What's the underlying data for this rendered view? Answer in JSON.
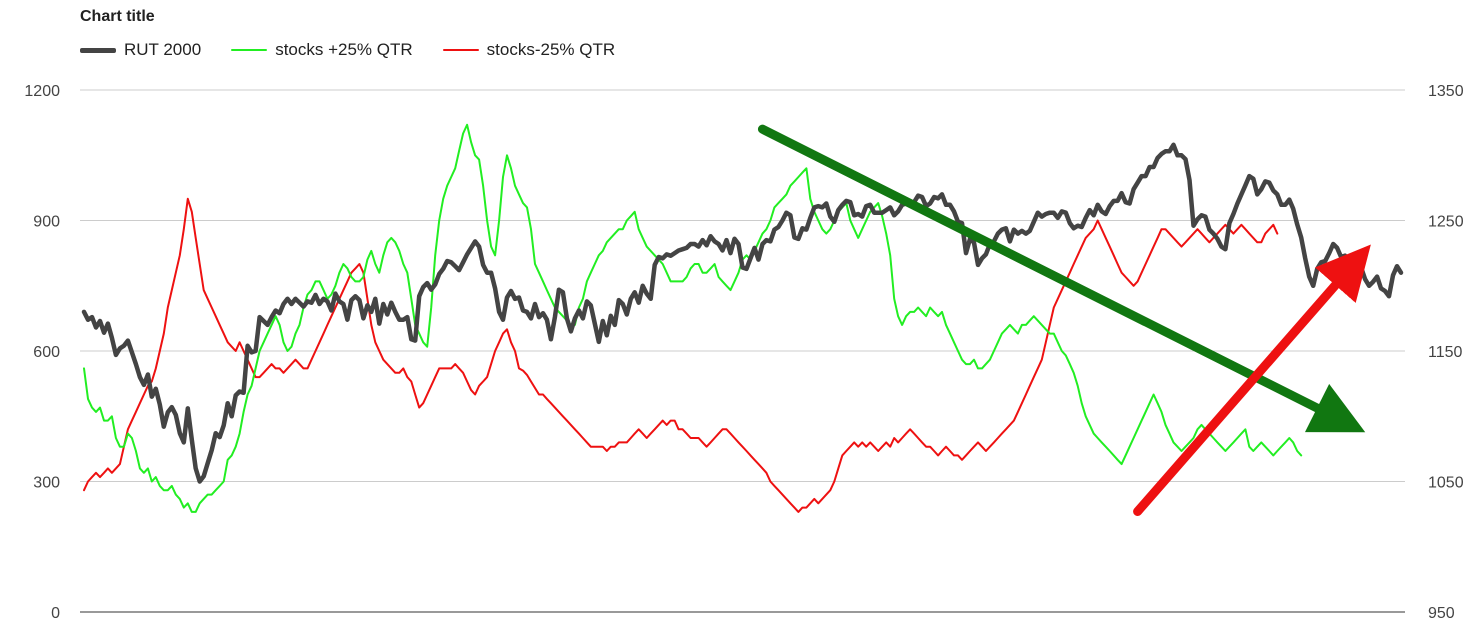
{
  "chart_data": {
    "type": "line",
    "title": "Chart title",
    "legend_position": "top-left",
    "grid": true,
    "y_left": {
      "range": [
        0,
        1200
      ],
      "ticks": [
        0,
        300,
        600,
        900,
        1200
      ]
    },
    "y_right": {
      "range": [
        950,
        1350
      ],
      "ticks": [
        950,
        1050,
        1150,
        1250,
        1350
      ]
    },
    "series": [
      {
        "name": "RUT 2000",
        "axis": "right",
        "color": "#444444",
        "width": 4.5,
        "values": [
          1180,
          1174,
          1176,
          1168,
          1173,
          1164,
          1171,
          1160,
          1147,
          1152,
          1154,
          1158,
          1149,
          1140,
          1130,
          1124,
          1132,
          1115,
          1121,
          1109,
          1092,
          1103,
          1107,
          1101,
          1087,
          1080,
          1106,
          1082,
          1060,
          1050,
          1054,
          1064,
          1074,
          1087,
          1084,
          1093,
          1110,
          1100,
          1116,
          1119,
          1118,
          1154,
          1149,
          1150,
          1176,
          1173,
          1170,
          1176,
          1181,
          1179,
          1186,
          1190,
          1186,
          1190,
          1187,
          1184,
          1188,
          1187,
          1193,
          1186,
          1190,
          1188,
          1181,
          1194,
          1188,
          1186,
          1174,
          1189,
          1192,
          1189,
          1175,
          1185,
          1180,
          1190,
          1171,
          1186,
          1178,
          1187,
          1180,
          1174,
          1174,
          1176,
          1159,
          1158,
          1192,
          1199,
          1202,
          1197,
          1201,
          1209,
          1213,
          1219,
          1218,
          1215,
          1212,
          1218,
          1224,
          1229,
          1234,
          1230,
          1216,
          1210,
          1210,
          1198,
          1180,
          1174,
          1191,
          1196,
          1190,
          1191,
          1181,
          1180,
          1175,
          1186,
          1176,
          1179,
          1174,
          1159,
          1176,
          1197,
          1195,
          1175,
          1165,
          1175,
          1181,
          1175,
          1188,
          1185,
          1171,
          1157,
          1173,
          1162,
          1177,
          1170,
          1189,
          1186,
          1178,
          1190,
          1195,
          1187,
          1200,
          1194,
          1190,
          1216,
          1222,
          1221,
          1224,
          1223,
          1225,
          1227,
          1228,
          1229,
          1232,
          1232,
          1230,
          1235,
          1231,
          1238,
          1234,
          1232,
          1227,
          1235,
          1225,
          1236,
          1232,
          1214,
          1213,
          1221,
          1229,
          1220,
          1232,
          1235,
          1234,
          1243,
          1245,
          1250,
          1256,
          1254,
          1237,
          1236,
          1244,
          1243,
          1252,
          1260,
          1261,
          1260,
          1263,
          1253,
          1249,
          1258,
          1262,
          1265,
          1264,
          1254,
          1255,
          1253,
          1261,
          1262,
          1256,
          1256,
          1256,
          1258,
          1260,
          1254,
          1257,
          1262,
          1263,
          1264,
          1264,
          1269,
          1268,
          1261,
          1263,
          1268,
          1267,
          1270,
          1262,
          1262,
          1257,
          1249,
          1248,
          1225,
          1236,
          1233,
          1216,
          1221,
          1224,
          1232,
          1234,
          1240,
          1243,
          1244,
          1234,
          1243,
          1240,
          1242,
          1240,
          1242,
          1249,
          1256,
          1253,
          1255,
          1256,
          1256,
          1252,
          1257,
          1256,
          1248,
          1244,
          1246,
          1245,
          1252,
          1258,
          1254,
          1262,
          1257,
          1255,
          1261,
          1265,
          1265,
          1271,
          1264,
          1263,
          1274,
          1279,
          1284,
          1284,
          1291,
          1291,
          1298,
          1301,
          1303,
          1303,
          1308,
          1300,
          1300,
          1297,
          1281,
          1246,
          1251,
          1254,
          1253,
          1243,
          1240,
          1236,
          1230,
          1228,
          1248,
          1255,
          1263,
          1270,
          1277,
          1284,
          1282,
          1270,
          1274,
          1280,
          1279,
          1273,
          1270,
          1262,
          1262,
          1266,
          1259,
          1247,
          1237,
          1221,
          1207,
          1200,
          1213,
          1218,
          1219,
          1225,
          1232,
          1229,
          1222,
          1223,
          1219,
          1222,
          1212,
          1214,
          1205,
          1200,
          1203,
          1207,
          1198,
          1196,
          1192,
          1208,
          1215,
          1210
        ]
      },
      {
        "name": "stocks +25% QTR",
        "axis": "left",
        "color": "#22ee22",
        "width": 2,
        "values": [
          560,
          490,
          470,
          460,
          470,
          440,
          440,
          450,
          400,
          380,
          380,
          410,
          400,
          370,
          330,
          320,
          330,
          300,
          310,
          290,
          280,
          280,
          290,
          270,
          260,
          240,
          250,
          230,
          230,
          250,
          260,
          270,
          270,
          280,
          290,
          300,
          350,
          360,
          380,
          410,
          460,
          500,
          520,
          560,
          600,
          620,
          640,
          660,
          680,
          660,
          620,
          600,
          610,
          640,
          660,
          700,
          730,
          740,
          760,
          760,
          740,
          720,
          730,
          750,
          780,
          800,
          790,
          770,
          760,
          760,
          770,
          810,
          830,
          800,
          780,
          820,
          850,
          860,
          850,
          830,
          800,
          780,
          720,
          660,
          640,
          620,
          610,
          700,
          820,
          900,
          950,
          980,
          1000,
          1020,
          1060,
          1100,
          1120,
          1080,
          1050,
          1040,
          980,
          900,
          840,
          820,
          900,
          1000,
          1050,
          1020,
          980,
          960,
          940,
          930,
          880,
          800,
          780,
          760,
          740,
          720,
          700,
          690,
          680,
          670,
          660,
          660,
          700,
          720,
          760,
          780,
          800,
          820,
          830,
          850,
          860,
          870,
          880,
          880,
          900,
          910,
          920,
          880,
          860,
          840,
          830,
          820,
          810,
          800,
          780,
          760,
          760,
          760,
          760,
          770,
          790,
          800,
          800,
          780,
          780,
          790,
          800,
          770,
          760,
          750,
          740,
          760,
          780,
          810,
          820,
          810,
          830,
          850,
          870,
          880,
          900,
          930,
          940,
          950,
          960,
          980,
          990,
          1000,
          1010,
          1020,
          950,
          920,
          900,
          880,
          870,
          880,
          900,
          920,
          930,
          940,
          900,
          880,
          860,
          880,
          900,
          920,
          930,
          940,
          910,
          870,
          820,
          720,
          680,
          660,
          680,
          690,
          690,
          700,
          690,
          680,
          700,
          690,
          680,
          690,
          660,
          640,
          620,
          600,
          580,
          570,
          570,
          580,
          560,
          560,
          570,
          580,
          600,
          620,
          640,
          650,
          660,
          650,
          640,
          660,
          660,
          670,
          680,
          670,
          660,
          650,
          640,
          640,
          620,
          600,
          590,
          570,
          550,
          520,
          480,
          450,
          430,
          410,
          400,
          390,
          380,
          370,
          360,
          350,
          340,
          360,
          380,
          400,
          420,
          440,
          460,
          480,
          500,
          480,
          460,
          430,
          410,
          390,
          380,
          370,
          380,
          390,
          400,
          420,
          430,
          420,
          410,
          400,
          390,
          380,
          370,
          380,
          390,
          400,
          410,
          420,
          380,
          370,
          380,
          390,
          380,
          370,
          360,
          370,
          380,
          390,
          400,
          390,
          370,
          360
        ]
      },
      {
        "name": "stocks-25% QTR",
        "axis": "left",
        "color": "#ee1111",
        "width": 2,
        "values": [
          280,
          300,
          310,
          320,
          310,
          320,
          330,
          320,
          330,
          340,
          380,
          420,
          440,
          460,
          480,
          500,
          520,
          530,
          560,
          600,
          640,
          700,
          740,
          780,
          820,
          880,
          950,
          920,
          860,
          800,
          740,
          720,
          700,
          680,
          660,
          640,
          620,
          610,
          600,
          620,
          600,
          580,
          560,
          540,
          540,
          550,
          560,
          570,
          560,
          560,
          550,
          560,
          570,
          580,
          570,
          560,
          560,
          580,
          600,
          620,
          640,
          660,
          680,
          700,
          720,
          740,
          760,
          780,
          790,
          800,
          780,
          720,
          660,
          620,
          600,
          580,
          570,
          560,
          550,
          550,
          560,
          540,
          530,
          500,
          470,
          480,
          500,
          520,
          540,
          560,
          560,
          560,
          560,
          570,
          560,
          550,
          530,
          510,
          500,
          520,
          530,
          540,
          570,
          600,
          620,
          640,
          650,
          620,
          600,
          560,
          555,
          545,
          530,
          515,
          500,
          500,
          490,
          480,
          470,
          460,
          450,
          440,
          430,
          420,
          410,
          400,
          390,
          380,
          380,
          380,
          380,
          370,
          380,
          380,
          390,
          390,
          390,
          400,
          410,
          420,
          410,
          400,
          410,
          420,
          430,
          440,
          430,
          440,
          440,
          420,
          420,
          410,
          400,
          400,
          400,
          390,
          380,
          390,
          400,
          410,
          420,
          420,
          410,
          400,
          390,
          380,
          370,
          360,
          350,
          340,
          330,
          320,
          300,
          290,
          280,
          270,
          260,
          250,
          240,
          230,
          240,
          240,
          250,
          260,
          250,
          260,
          270,
          280,
          300,
          330,
          360,
          370,
          380,
          390,
          380,
          390,
          380,
          390,
          380,
          370,
          380,
          390,
          380,
          400,
          390,
          400,
          410,
          420,
          410,
          400,
          390,
          380,
          380,
          370,
          360,
          370,
          380,
          370,
          360,
          360,
          350,
          360,
          370,
          380,
          390,
          380,
          370,
          380,
          390,
          400,
          410,
          420,
          430,
          440,
          460,
          480,
          500,
          520,
          540,
          560,
          580,
          620,
          660,
          700,
          720,
          740,
          760,
          780,
          800,
          820,
          840,
          860,
          870,
          880,
          900,
          880,
          860,
          840,
          820,
          800,
          780,
          770,
          760,
          750,
          760,
          780,
          800,
          820,
          840,
          860,
          880,
          880,
          870,
          860,
          850,
          840,
          850,
          860,
          870,
          880,
          870,
          860,
          850,
          860,
          870,
          880,
          890,
          880,
          870,
          880,
          890,
          880,
          870,
          860,
          850,
          850,
          870,
          880,
          890,
          870
        ]
      }
    ],
    "annotations": [
      {
        "type": "arrow",
        "color": "#117711",
        "from": {
          "series_index": 170,
          "axis_value": 1320
        },
        "to": {
          "series_index": 315,
          "axis_value": 1097
        }
      },
      {
        "type": "arrow",
        "color": "#ee1111",
        "from": {
          "series_index": 264,
          "axis_value": 1027
        },
        "to": {
          "series_index": 318,
          "axis_value": 1216
        }
      }
    ]
  }
}
